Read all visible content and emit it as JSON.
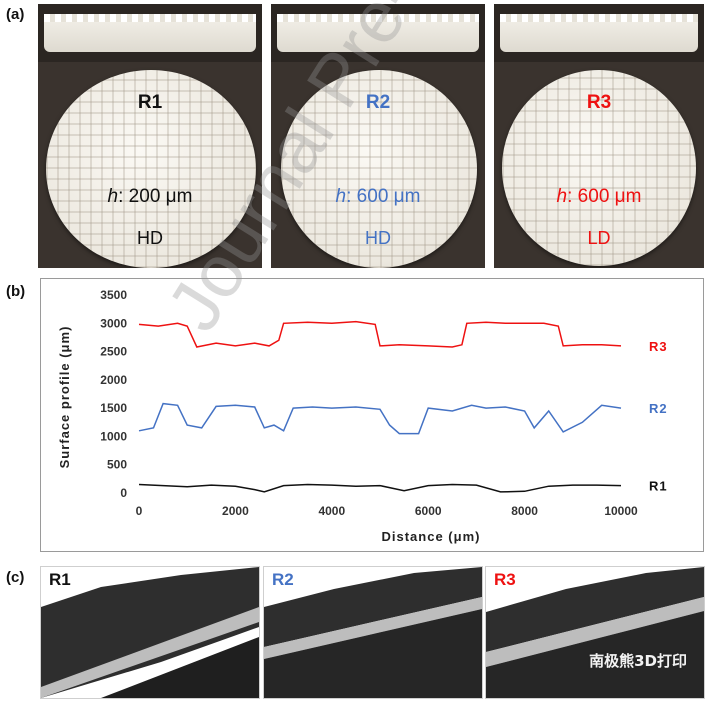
{
  "panels": {
    "a_label": "(a)",
    "b_label": "(b)",
    "c_label": "(c)"
  },
  "samples": [
    {
      "name": "R1",
      "h_prefix": "h",
      "h_value": ": 200 μm",
      "density": "HD",
      "color": "#111111"
    },
    {
      "name": "R2",
      "h_prefix": "h",
      "h_value": ": 600 μm",
      "density": "HD",
      "color": "#4472c4"
    },
    {
      "name": "R3",
      "h_prefix": "h",
      "h_value": ": 600 μm",
      "density": "LD",
      "color": "#ee1111"
    }
  ],
  "chart_data": {
    "type": "line",
    "xlabel": "Distance (μm)",
    "ylabel": "Surface profile (μm)",
    "xlim": [
      0,
      10000
    ],
    "ylim": [
      0,
      3500
    ],
    "xticks": [
      0,
      2000,
      4000,
      6000,
      8000,
      10000
    ],
    "yticks": [
      0,
      500,
      1000,
      1500,
      2000,
      2500,
      3000,
      3500
    ],
    "series": [
      {
        "name": "R3",
        "color": "#ee1111",
        "x": [
          0,
          400,
          800,
          1000,
          1200,
          1600,
          2000,
          2400,
          2700,
          2900,
          3000,
          3500,
          4000,
          4500,
          4900,
          5000,
          5400,
          6000,
          6500,
          6700,
          6800,
          7200,
          7600,
          8000,
          8400,
          8700,
          8800,
          9200,
          9600,
          10000
        ],
        "y": [
          2980,
          2950,
          3000,
          2950,
          2580,
          2650,
          2600,
          2650,
          2600,
          2700,
          3000,
          3020,
          3000,
          3030,
          2980,
          2600,
          2620,
          2600,
          2580,
          2620,
          3000,
          3020,
          3000,
          3000,
          3000,
          2950,
          2600,
          2620,
          2620,
          2600
        ]
      },
      {
        "name": "R2",
        "color": "#4472c4",
        "x": [
          0,
          300,
          500,
          800,
          1000,
          1300,
          1600,
          2000,
          2400,
          2600,
          2800,
          3000,
          3200,
          3600,
          4000,
          4500,
          5000,
          5200,
          5400,
          5800,
          6000,
          6500,
          6900,
          7200,
          7600,
          8000,
          8200,
          8500,
          8800,
          9200,
          9600,
          10000
        ],
        "y": [
          1100,
          1150,
          1580,
          1550,
          1200,
          1150,
          1530,
          1550,
          1520,
          1150,
          1200,
          1100,
          1500,
          1520,
          1500,
          1520,
          1480,
          1200,
          1050,
          1050,
          1500,
          1450,
          1550,
          1500,
          1520,
          1450,
          1150,
          1450,
          1080,
          1250,
          1550,
          1500
        ]
      },
      {
        "name": "R1",
        "color": "#111111",
        "x": [
          0,
          500,
          1000,
          1500,
          2000,
          2400,
          2600,
          3000,
          3500,
          4000,
          4500,
          5000,
          5500,
          6000,
          6500,
          7000,
          7500,
          8000,
          8500,
          9000,
          9500,
          10000
        ],
        "y": [
          150,
          130,
          110,
          140,
          120,
          60,
          20,
          130,
          150,
          140,
          120,
          130,
          40,
          130,
          150,
          140,
          20,
          30,
          120,
          140,
          140,
          130
        ]
      }
    ]
  },
  "renders": [
    {
      "name": "R1",
      "color": "#111111"
    },
    {
      "name": "R2",
      "color": "#4472c4"
    },
    {
      "name": "R3",
      "color": "#ee1111"
    }
  ],
  "watermark": "Journal Pre-proof",
  "credit": "南极熊3D打印"
}
